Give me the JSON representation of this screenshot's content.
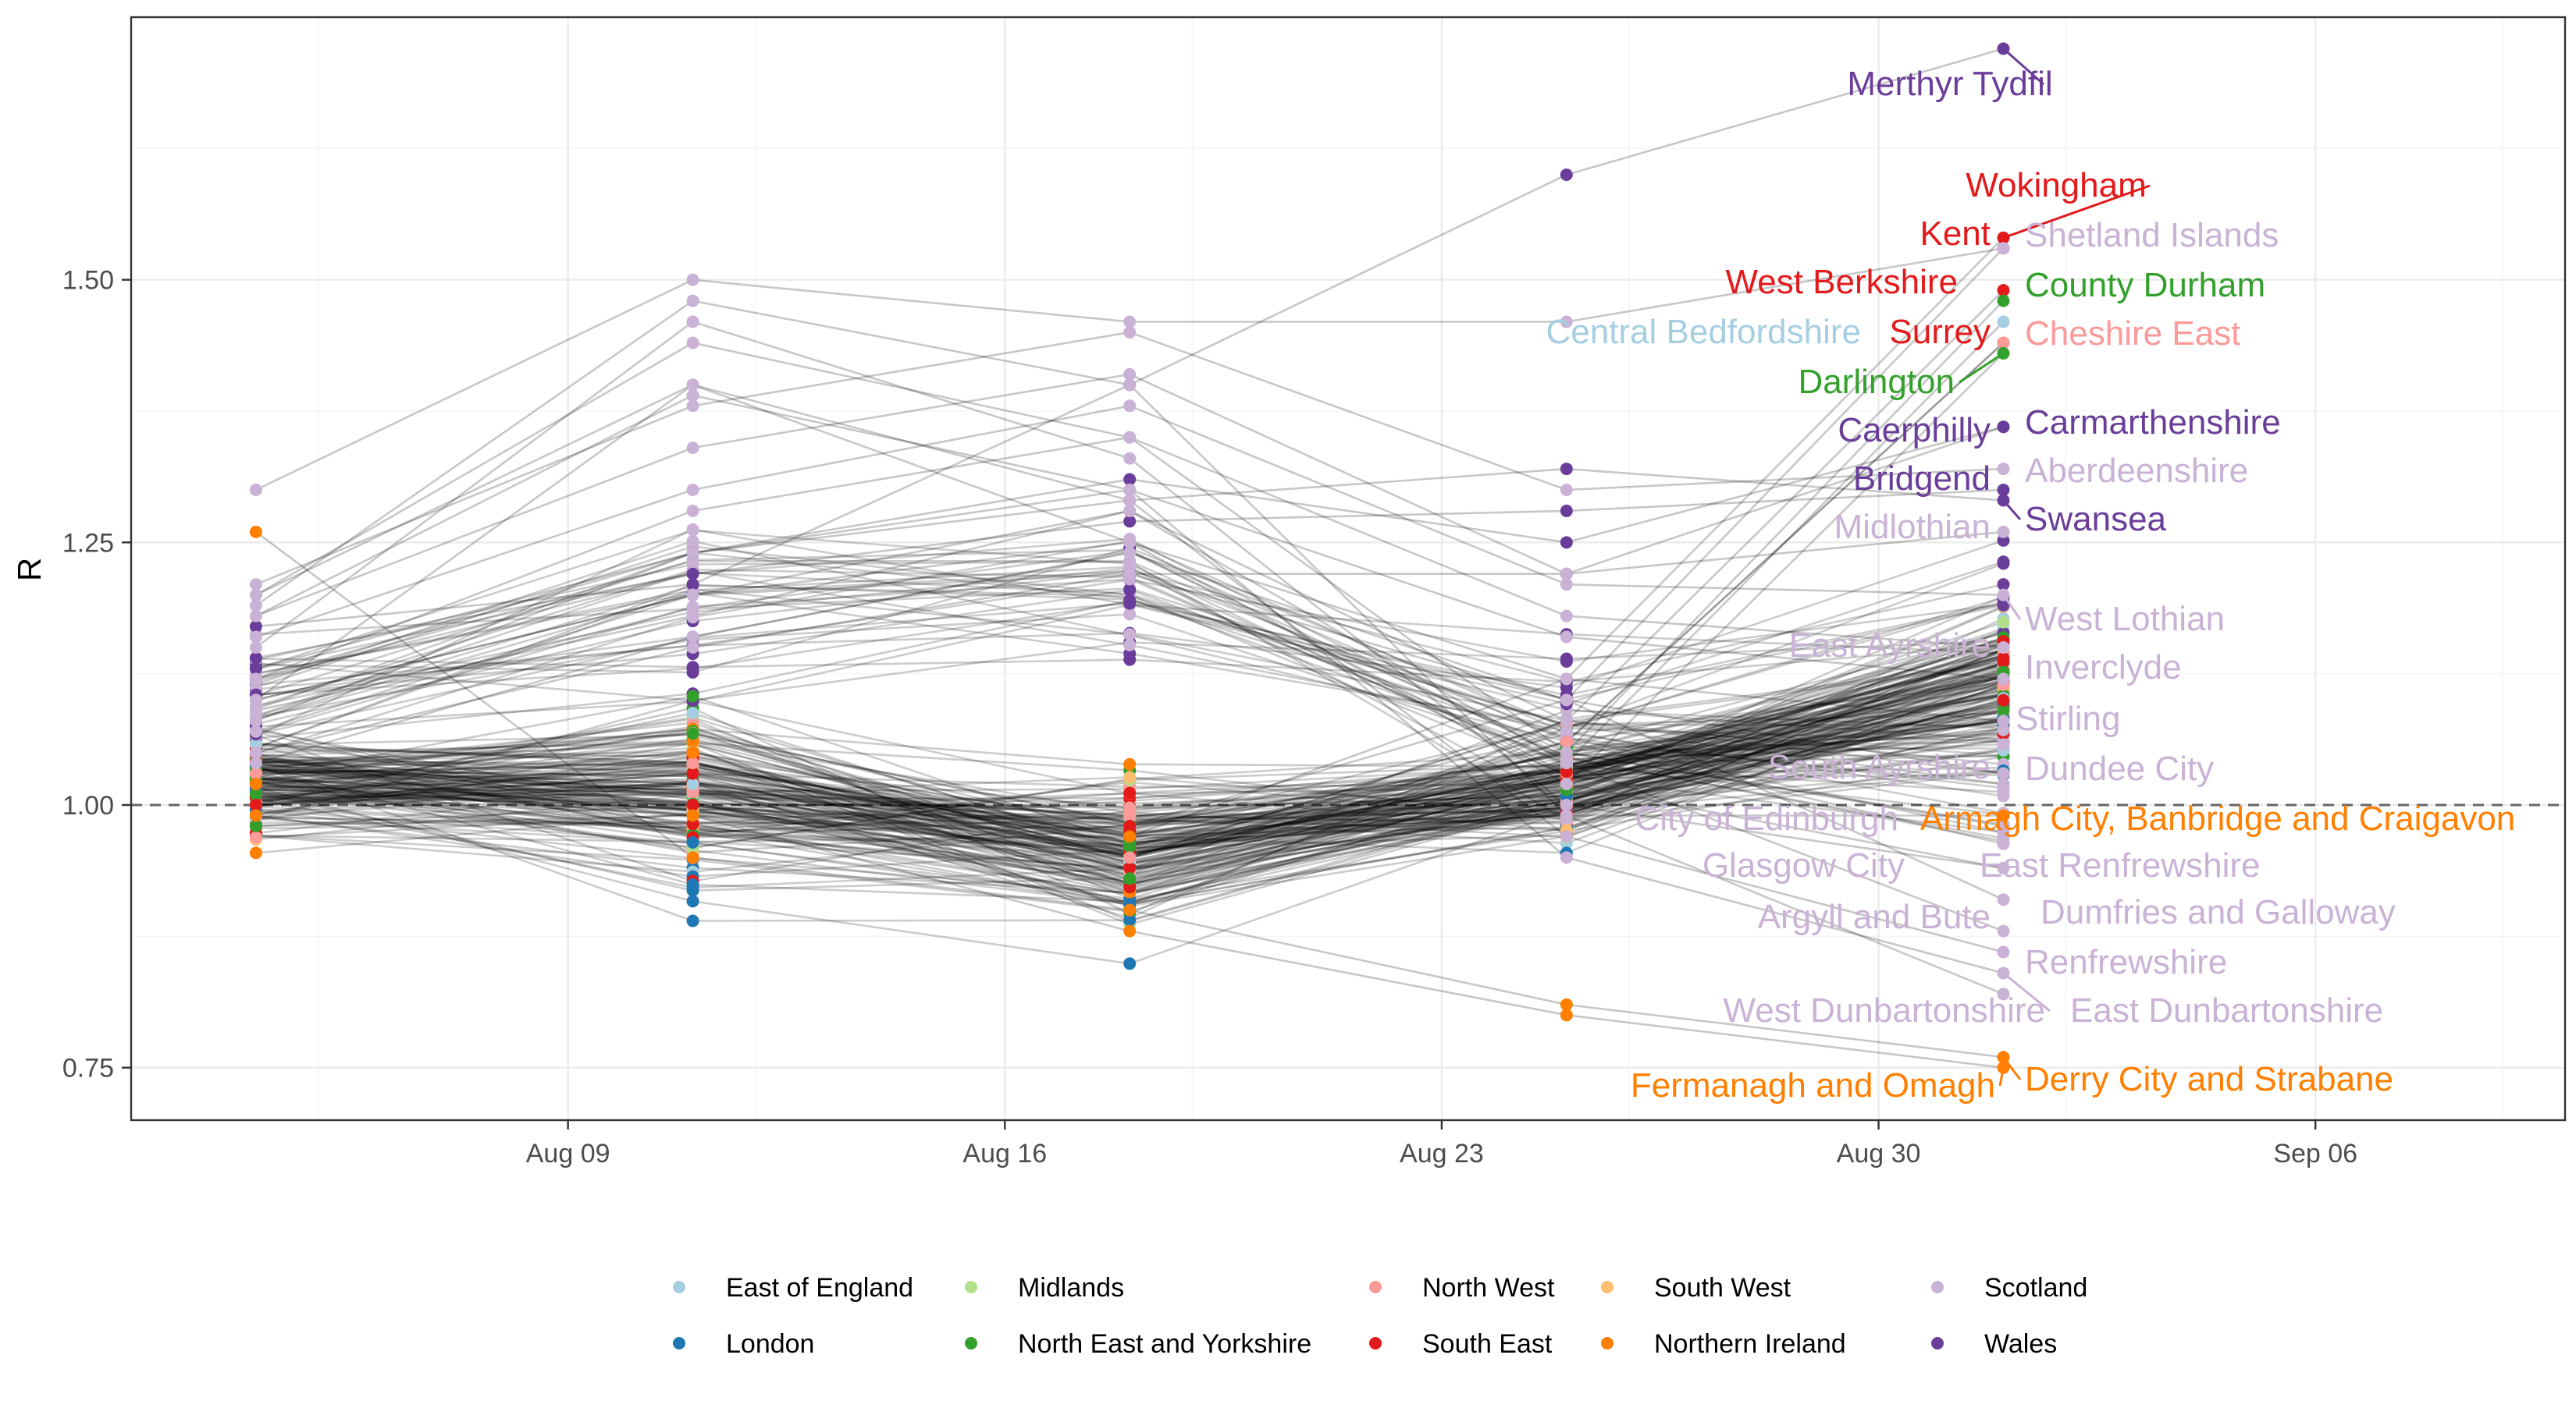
{
  "chart_data": {
    "type": "scatter",
    "title": "",
    "xlabel": "",
    "ylabel": "R",
    "x_ticks": [
      "Aug 09",
      "Aug 16",
      "Aug 23",
      "Aug 30",
      "Sep 06"
    ],
    "y_ticks": [
      "0.75",
      "1.00",
      "1.25",
      "1.50"
    ],
    "xlim": [
      "2020-08-02",
      "2020-09-10"
    ],
    "ylim": [
      0.7,
      1.75
    ],
    "reference_line": {
      "y": 1.0,
      "style": "dashed"
    },
    "grid": true,
    "legend_position": "bottom",
    "dates": [
      "2020-08-04",
      "2020-08-11",
      "2020-08-18",
      "2020-08-25",
      "2020-09-01"
    ],
    "regions": [
      {
        "name": "East of England",
        "color": "#A6CEE3"
      },
      {
        "name": "London",
        "color": "#1F78B4"
      },
      {
        "name": "Midlands",
        "color": "#B2DF8A"
      },
      {
        "name": "North East and Yorkshire",
        "color": "#33A02C"
      },
      {
        "name": "North West",
        "color": "#FB9A99"
      },
      {
        "name": "South East",
        "color": "#E31A1C"
      },
      {
        "name": "South West",
        "color": "#FDBF6F"
      },
      {
        "name": "Northern Ireland",
        "color": "#FF7F00"
      },
      {
        "name": "Scotland",
        "color": "#CAB2D6"
      },
      {
        "name": "Wales",
        "color": "#6A3D9A"
      }
    ],
    "labeled_areas": [
      {
        "name": "Merthyr Tydfil",
        "region": "Wales",
        "values": [
          1.17,
          1.21,
          1.4,
          1.6,
          1.72
        ]
      },
      {
        "name": "Wokingham",
        "region": "South East",
        "values": [
          1.0,
          1.03,
          0.97,
          1.12,
          1.54
        ]
      },
      {
        "name": "Kent",
        "region": "South East",
        "values": [
          1.02,
          1.05,
          0.98,
          1.1,
          1.53
        ]
      },
      {
        "name": "Shetland Islands",
        "region": "Scotland",
        "values": [
          1.3,
          1.5,
          1.46,
          1.46,
          1.53
        ]
      },
      {
        "name": "West Berkshire",
        "region": "South East",
        "values": [
          0.98,
          1.0,
          0.95,
          1.08,
          1.49
        ]
      },
      {
        "name": "County Durham",
        "region": "North East and Yorkshire",
        "values": [
          1.01,
          1.04,
          0.96,
          1.05,
          1.48
        ]
      },
      {
        "name": "Central Bedfordshire",
        "region": "East of England",
        "values": [
          1.0,
          1.02,
          0.94,
          1.04,
          1.46
        ]
      },
      {
        "name": "Surrey",
        "region": "South East",
        "values": [
          1.0,
          1.03,
          0.94,
          1.06,
          1.44
        ]
      },
      {
        "name": "Cheshire East",
        "region": "North West",
        "values": [
          1.03,
          1.04,
          0.95,
          1.06,
          1.44
        ]
      },
      {
        "name": "Darlington",
        "region": "North East and Yorkshire",
        "values": [
          0.98,
          0.99,
          0.93,
          1.02,
          1.43
        ]
      },
      {
        "name": "Caerphilly",
        "region": "Wales",
        "values": [
          1.12,
          1.24,
          1.31,
          1.25,
          1.36
        ]
      },
      {
        "name": "Carmarthenshire",
        "region": "Wales",
        "values": [
          1.1,
          1.2,
          1.22,
          1.22,
          1.36
        ]
      },
      {
        "name": "Bridgend",
        "region": "Wales",
        "values": [
          1.14,
          1.22,
          1.27,
          1.28,
          1.3
        ]
      },
      {
        "name": "Aberdeenshire",
        "region": "Scotland",
        "values": [
          1.21,
          1.38,
          1.45,
          1.3,
          1.32
        ]
      },
      {
        "name": "Swansea",
        "region": "Wales",
        "values": [
          1.13,
          1.24,
          1.29,
          1.32,
          1.29
        ]
      },
      {
        "name": "Midlothian",
        "region": "Scotland",
        "values": [
          1.18,
          1.34,
          1.41,
          1.22,
          1.26
        ]
      },
      {
        "name": "West Lothian",
        "region": "Scotland",
        "values": [
          1.16,
          1.3,
          1.38,
          1.21,
          1.2
        ]
      },
      {
        "name": "East Ayrshire",
        "region": "Scotland",
        "values": [
          1.12,
          1.28,
          1.35,
          1.18,
          1.15
        ]
      },
      {
        "name": "Inverclyde",
        "region": "Scotland",
        "values": [
          1.08,
          1.24,
          1.3,
          1.16,
          1.12
        ]
      },
      {
        "name": "Stirling",
        "region": "Scotland",
        "values": [
          1.1,
          1.2,
          1.25,
          1.12,
          1.08
        ]
      },
      {
        "name": "South Ayrshire",
        "region": "Scotland",
        "values": [
          1.05,
          1.15,
          1.22,
          1.1,
          1.03
        ]
      },
      {
        "name": "Dundee City",
        "region": "Scotland",
        "values": [
          1.09,
          1.18,
          1.28,
          1.08,
          1.03
        ]
      },
      {
        "name": "City of Edinburgh",
        "region": "Scotland",
        "values": [
          1.2,
          1.44,
          1.35,
          1.05,
          0.98
        ]
      },
      {
        "name": "Armagh City, Banbridge and Craigavon",
        "region": "Northern Ireland",
        "values": [
          0.99,
          1.05,
          0.97,
          0.99,
          0.99
        ]
      },
      {
        "name": "Glasgow City",
        "region": "Scotland",
        "values": [
          1.1,
          1.4,
          1.25,
          1.02,
          0.94
        ]
      },
      {
        "name": "East Renfrewshire",
        "region": "Scotland",
        "values": [
          1.15,
          1.46,
          1.33,
          1.0,
          0.94
        ]
      },
      {
        "name": "Dumfries and Galloway",
        "region": "Scotland",
        "values": [
          1.04,
          1.16,
          1.24,
          1.1,
          0.91
        ]
      },
      {
        "name": "Argyll and Bute",
        "region": "Scotland",
        "values": [
          1.07,
          1.2,
          1.28,
          1.04,
          0.88
        ]
      },
      {
        "name": "Renfrewshire",
        "region": "Scotland",
        "values": [
          1.2,
          1.4,
          1.29,
          0.97,
          0.86
        ]
      },
      {
        "name": "West Dunbartonshire",
        "region": "Scotland",
        "values": [
          1.18,
          1.39,
          1.3,
          0.95,
          0.84
        ]
      },
      {
        "name": "East Dunbartonshire",
        "region": "Scotland",
        "values": [
          1.19,
          1.48,
          1.4,
          0.99,
          0.82
        ]
      },
      {
        "name": "Fermanagh and Omagh",
        "region": "Northern Ireland",
        "values": [
          1.02,
          0.99,
          0.88,
          0.8,
          0.75
        ]
      },
      {
        "name": "Derry City and Strabane",
        "region": "Northern Ireland",
        "values": [
          1.26,
          0.95,
          0.9,
          0.81,
          0.76
        ]
      }
    ],
    "other_areas_note": ""
  }
}
